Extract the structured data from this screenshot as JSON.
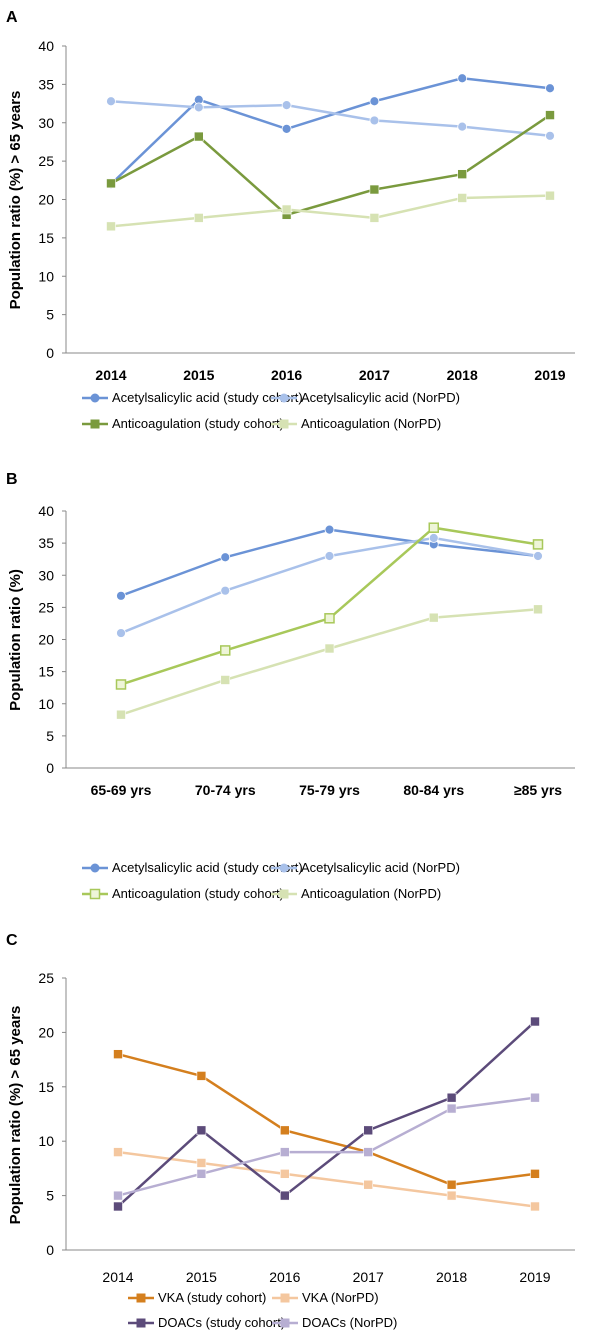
{
  "chart_data": [
    {
      "panel": "A",
      "type": "line",
      "categories": [
        "2014",
        "2015",
        "2016",
        "2017",
        "2018",
        "2019"
      ],
      "ylabel": "Population ratio (%) > 65 years",
      "xlabel": "",
      "ylim": [
        0,
        40
      ],
      "yticks": [
        0,
        5,
        10,
        15,
        20,
        25,
        30,
        35,
        40
      ],
      "grid": false,
      "legend": "bottom",
      "series": [
        {
          "name": "Acetylsalicylic acid (study cohort)",
          "color": "#6b93d6",
          "marker": "circle",
          "values": [
            22,
            33,
            29.2,
            32.8,
            35.8,
            34.5
          ]
        },
        {
          "name": "Acetylsalicylic acid (NorPD)",
          "color": "#a9c1ea",
          "marker": "circle",
          "values": [
            32.8,
            32,
            32.3,
            30.3,
            29.5,
            28.3
          ]
        },
        {
          "name": "Anticoagulation (study cohort)",
          "color": "#7a9a3e",
          "marker": "square",
          "values": [
            22.1,
            28.2,
            18,
            21.3,
            23.3,
            31
          ]
        },
        {
          "name": "Anticoagulation (NorPD)",
          "color": "#d6e2b3",
          "marker": "square",
          "values": [
            16.5,
            17.6,
            18.7,
            17.6,
            20.2,
            20.5
          ]
        }
      ]
    },
    {
      "panel": "B",
      "type": "line",
      "categories": [
        "65-69 yrs",
        "70-74 yrs",
        "75-79 yrs",
        "80-84 yrs",
        "≥85 yrs"
      ],
      "ylabel": "Population ratio (%)",
      "xlabel": "",
      "ylim": [
        0,
        40
      ],
      "yticks": [
        0,
        5,
        10,
        15,
        20,
        25,
        30,
        35,
        40
      ],
      "grid": false,
      "legend": "bottom",
      "series": [
        {
          "name": "Acetylsalicylic acid (study cohort)",
          "color": "#6b93d6",
          "marker": "circle",
          "values": [
            26.8,
            32.8,
            37.1,
            34.8,
            33
          ]
        },
        {
          "name": "Acetylsalicylic acid (NorPD)",
          "color": "#a9c1ea",
          "marker": "circle",
          "values": [
            21,
            27.6,
            33,
            35.8,
            33
          ]
        },
        {
          "name": "Anticoagulation (study cohort)",
          "color": "#a8c85a",
          "marker": "square-hollow",
          "values": [
            13,
            18.3,
            23.3,
            37.4,
            34.8
          ]
        },
        {
          "name": "Anticoagulation (NorPD)",
          "color": "#d6e2b3",
          "marker": "square",
          "values": [
            8.3,
            13.7,
            18.6,
            23.4,
            24.7
          ]
        }
      ]
    },
    {
      "panel": "C",
      "type": "line",
      "categories": [
        "2014",
        "2015",
        "2016",
        "2017",
        "2018",
        "2019"
      ],
      "ylabel": "Population ratio (%) > 65 years",
      "xlabel": "",
      "ylim": [
        0,
        25
      ],
      "yticks": [
        0,
        5,
        10,
        15,
        20,
        25
      ],
      "grid": false,
      "legend": "bottom",
      "series": [
        {
          "name": "VKA (study cohort)",
          "color": "#d47f1e",
          "marker": "square",
          "values": [
            18,
            16,
            11,
            9,
            6,
            7
          ]
        },
        {
          "name": "VKA (NorPD)",
          "color": "#f4c79f",
          "marker": "square",
          "values": [
            9,
            8,
            7,
            6,
            5,
            4
          ]
        },
        {
          "name": "DOACs (study cohort)",
          "color": "#5c4b7a",
          "marker": "square",
          "values": [
            4,
            11,
            5,
            11,
            14,
            21
          ]
        },
        {
          "name": "DOACs (NorPD)",
          "color": "#b7aed2",
          "marker": "square",
          "values": [
            5,
            7,
            9,
            9,
            13,
            14
          ]
        }
      ]
    }
  ]
}
